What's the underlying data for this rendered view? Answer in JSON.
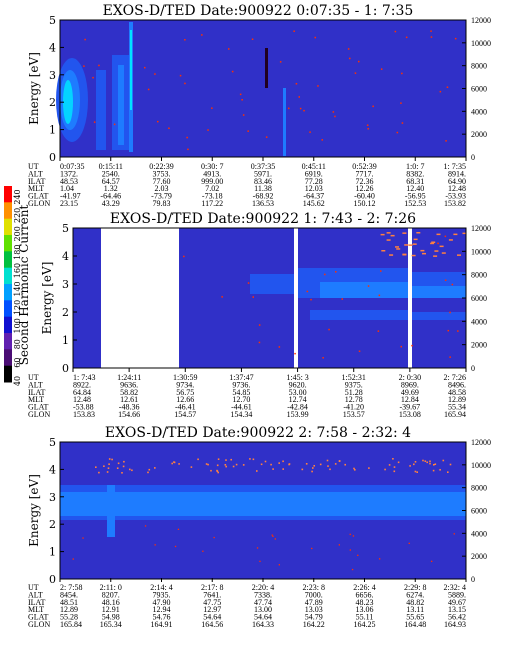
{
  "colors": {
    "background_blue": "#3030c8",
    "mid_blue": "#2255ee",
    "bright_blue": "#1e7cff",
    "cyan": "#00e4ff",
    "white_gap": "#ffffff",
    "dot_orange": "#ff8040",
    "dot_red": "#ff3000",
    "black": "#000000"
  },
  "colorbar": {
    "label": "Second Harmonic Current",
    "ticks": [
      "40",
      "60",
      "80",
      "100",
      "120",
      "140",
      "160",
      "180",
      "200",
      "220",
      "240"
    ],
    "colors": [
      "#000000",
      "#4a0d74",
      "#6020b0",
      "#1010d0",
      "#0050ff",
      "#00a0ff",
      "#00e0d0",
      "#00c040",
      "#60e000",
      "#e0e000",
      "#ff9000",
      "#ff0000"
    ]
  },
  "chart_data": [
    {
      "type": "heatmap",
      "title": "EXOS-D/TED   Date:900922  0:07:35 - 1: 7:35",
      "ylabel": "Energy [eV]",
      "y2label": "Temperature [K]",
      "ylim": [
        0,
        5
      ],
      "y_ticks": [
        "0",
        "1",
        "2",
        "3",
        "4",
        "5"
      ],
      "y2lim": [
        0,
        12000
      ],
      "y2_ticks": [
        "0",
        "2000",
        "4000",
        "6000",
        "8000",
        "10000",
        "12000"
      ],
      "legend": "left colorbar",
      "table": {
        "row_labels": [
          "UT",
          "ALT",
          "ILAT",
          "MLT",
          "GLAT",
          "GLON"
        ],
        "columns": [
          [
            "0:07:35",
            "1372.",
            "48.53",
            "1.04",
            "-41.97",
            "23.15"
          ],
          [
            "0:15:11",
            "2540.",
            "64.57",
            "1.32",
            "-64.46",
            "43.29"
          ],
          [
            "0:22:39",
            "3753.",
            "77.60",
            "2.03",
            "-73.79",
            "79.83"
          ],
          [
            "0:30: 7",
            "4913.",
            "999.00",
            "7.02",
            "-73.18",
            "117.22"
          ],
          [
            "0:37:35",
            "5971.",
            "83.46",
            "11.38",
            "-68.92",
            "136.53"
          ],
          [
            "0:45:11",
            "6919.",
            "77.28",
            "12.03",
            "-64.37",
            "145.62"
          ],
          [
            "0:52:39",
            "7717.",
            "72.36",
            "12.26",
            "-60.40",
            "150.12"
          ],
          [
            "1:0: 7",
            "8382.",
            "68.31",
            "12.40",
            "-56.95",
            "152.53"
          ],
          [
            "1: 7:35",
            "8914.",
            "64.90",
            "12.48",
            "-53.93",
            "153.82"
          ]
        ]
      }
    },
    {
      "type": "heatmap",
      "title": "EXOS-D/TED   Date:900922  1: 7:43 - 2: 7:26",
      "ylabel": "Energy [eV]",
      "y2label": "Temperature [K]",
      "ylim": [
        0,
        5
      ],
      "y_ticks": [
        "0",
        "1",
        "2",
        "3",
        "4",
        "5"
      ],
      "y2lim": [
        0,
        12000
      ],
      "y2_ticks": [
        "0",
        "2000",
        "4000",
        "6000",
        "8000",
        "10000",
        "12000"
      ],
      "table": {
        "row_labels": [
          "UT",
          "ALT",
          "ILAT",
          "MLT",
          "GLAT",
          "GLON"
        ],
        "columns": [
          [
            "1: 7:43",
            "8922.",
            "64.84",
            "12.48",
            "-53.88",
            "153.83"
          ],
          [
            "1:24:11",
            "9636.",
            "58.82",
            "12.61",
            "-48.36",
            "154.66"
          ],
          [
            "1:30:59",
            "9734.",
            "56.75",
            "12.66",
            "-46.41",
            "154.57"
          ],
          [
            "1:37:47",
            "9736.",
            "54.85",
            "12.70",
            "-44.61",
            "154.34"
          ],
          [
            "1:45: 3",
            "9620.",
            "53.00",
            "12.74",
            "-42.84",
            "153.99"
          ],
          [
            "1:52:31",
            "9375.",
            "51.28",
            "12.78",
            "-41.20",
            "153.57"
          ],
          [
            "2: 0:30",
            "8969.",
            "49.69",
            "12.84",
            "-39.67",
            "153.08"
          ],
          [
            "2: 7:26",
            "8496.",
            "48.58",
            "12.89",
            "55.34",
            "165.94"
          ]
        ]
      }
    },
    {
      "type": "heatmap",
      "title": "EXOS-D/TED   Date:900922  2: 7:58 - 2:32: 4",
      "ylabel": "Energy [eV]",
      "y2label": "Temperature [K]",
      "ylim": [
        0,
        5
      ],
      "y_ticks": [
        "0",
        "1",
        "2",
        "3",
        "4",
        "5"
      ],
      "y2lim": [
        0,
        12000
      ],
      "y2_ticks": [
        "0",
        "2000",
        "4000",
        "6000",
        "8000",
        "10000",
        "12000"
      ],
      "table": {
        "row_labels": [
          "UT",
          "ALT",
          "ILAT",
          "MLT",
          "GLAT",
          "GLON"
        ],
        "columns": [
          [
            "2: 7:58",
            "8454.",
            "48.51",
            "12.89",
            "55.28",
            "165.84"
          ],
          [
            "2:11: 0",
            "8207.",
            "48.16",
            "12.91",
            "54.98",
            "165.34"
          ],
          [
            "2:14: 4",
            "7935.",
            "47.90",
            "12.94",
            "54.76",
            "164.91"
          ],
          [
            "2:17: 8",
            "7641.",
            "47.75",
            "12.97",
            "54.64",
            "164.56"
          ],
          [
            "2:20: 4",
            "7338.",
            "47.74",
            "13.00",
            "54.64",
            "164.33"
          ],
          [
            "2:23: 8",
            "7000.",
            "47.89",
            "13.03",
            "54.79",
            "164.22"
          ],
          [
            "2:26: 4",
            "6656.",
            "48.23",
            "13.06",
            "55.11",
            "164.25"
          ],
          [
            "2:29: 8",
            "6274.",
            "48.82",
            "13.11",
            "55.65",
            "164.48"
          ],
          [
            "2:32: 4",
            "5889.",
            "49.67",
            "13.15",
            "56.42",
            "164.93"
          ]
        ]
      }
    }
  ]
}
